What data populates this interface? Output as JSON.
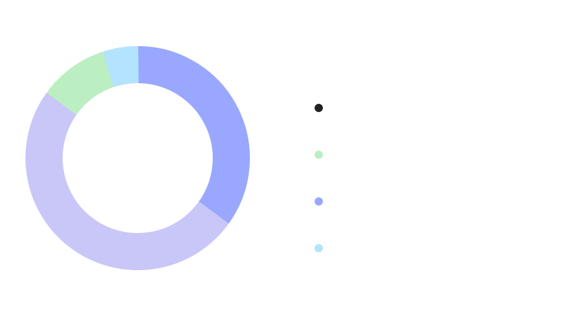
{
  "chart_data": {
    "type": "pie",
    "title": "",
    "donut": true,
    "start_position": "top",
    "direction": "clockwise",
    "slices": [
      {
        "label": "",
        "value": 35,
        "color": "#99a8fe"
      },
      {
        "label": "",
        "value": 50,
        "color": "#c9c6f8"
      },
      {
        "label": "",
        "value": 10,
        "color": "#bbefc2"
      },
      {
        "label": "",
        "value": 5,
        "color": "#b3e3fe"
      }
    ]
  },
  "legend": {
    "placement": "right",
    "items": [
      {
        "label": "",
        "color": "#222222"
      },
      {
        "label": "",
        "color": "#bbefc2"
      },
      {
        "label": "",
        "color": "#99a8fe"
      },
      {
        "label": "",
        "color": "#b3e3fe"
      }
    ]
  }
}
